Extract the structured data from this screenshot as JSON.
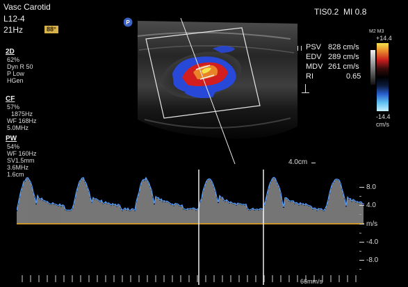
{
  "header": {
    "exam": "Vasc Carotid",
    "probe": "L12-4",
    "frame_rate": "21Hz",
    "angle_badge": "88°",
    "thermal_mech": "TIS0.2  MI 0.8"
  },
  "params_2d": {
    "title": "2D",
    "lines": [
      "62%",
      "Dyn R 50",
      "P Low",
      "HGen"
    ]
  },
  "params_cf": {
    "title": "CF",
    "lines": [
      "57%",
      "1875Hz",
      "WF 168Hz",
      "5.0MHz"
    ]
  },
  "params_pw": {
    "title": "PW",
    "lines": [
      "54%",
      "WF 160Hz",
      "SV1.5mm",
      "3.6MHz",
      "1.6cm"
    ]
  },
  "measurements": [
    {
      "label": "PSV",
      "value": "828 cm/s"
    },
    {
      "label": "EDV",
      "value": "289 cm/s"
    },
    {
      "label": "MDV",
      "value": "261 cm/s"
    },
    {
      "label": "RI",
      "value": "0.65"
    }
  ],
  "color_scale": {
    "top_label": "M2 M3",
    "max": "+14.4",
    "min": "-14.4",
    "unit": "cm/s",
    "colors": [
      "#f4e24a",
      "#e8832a",
      "#c81e1e",
      "#3a0c0c",
      "#000000",
      "#0c1a3a",
      "#2a5fd0",
      "#5fc0f0",
      "#c8f0ff"
    ]
  },
  "depth_label": "4.0cm",
  "probe_marker": "P",
  "spectral": {
    "scale_labels": [
      "8.0",
      "4.0",
      "m/s",
      "-4.0",
      "-8.0"
    ],
    "sweep_speed": "66mm/s",
    "baseline_color": "#c8962a",
    "envelope_color": "#4f9bff"
  }
}
